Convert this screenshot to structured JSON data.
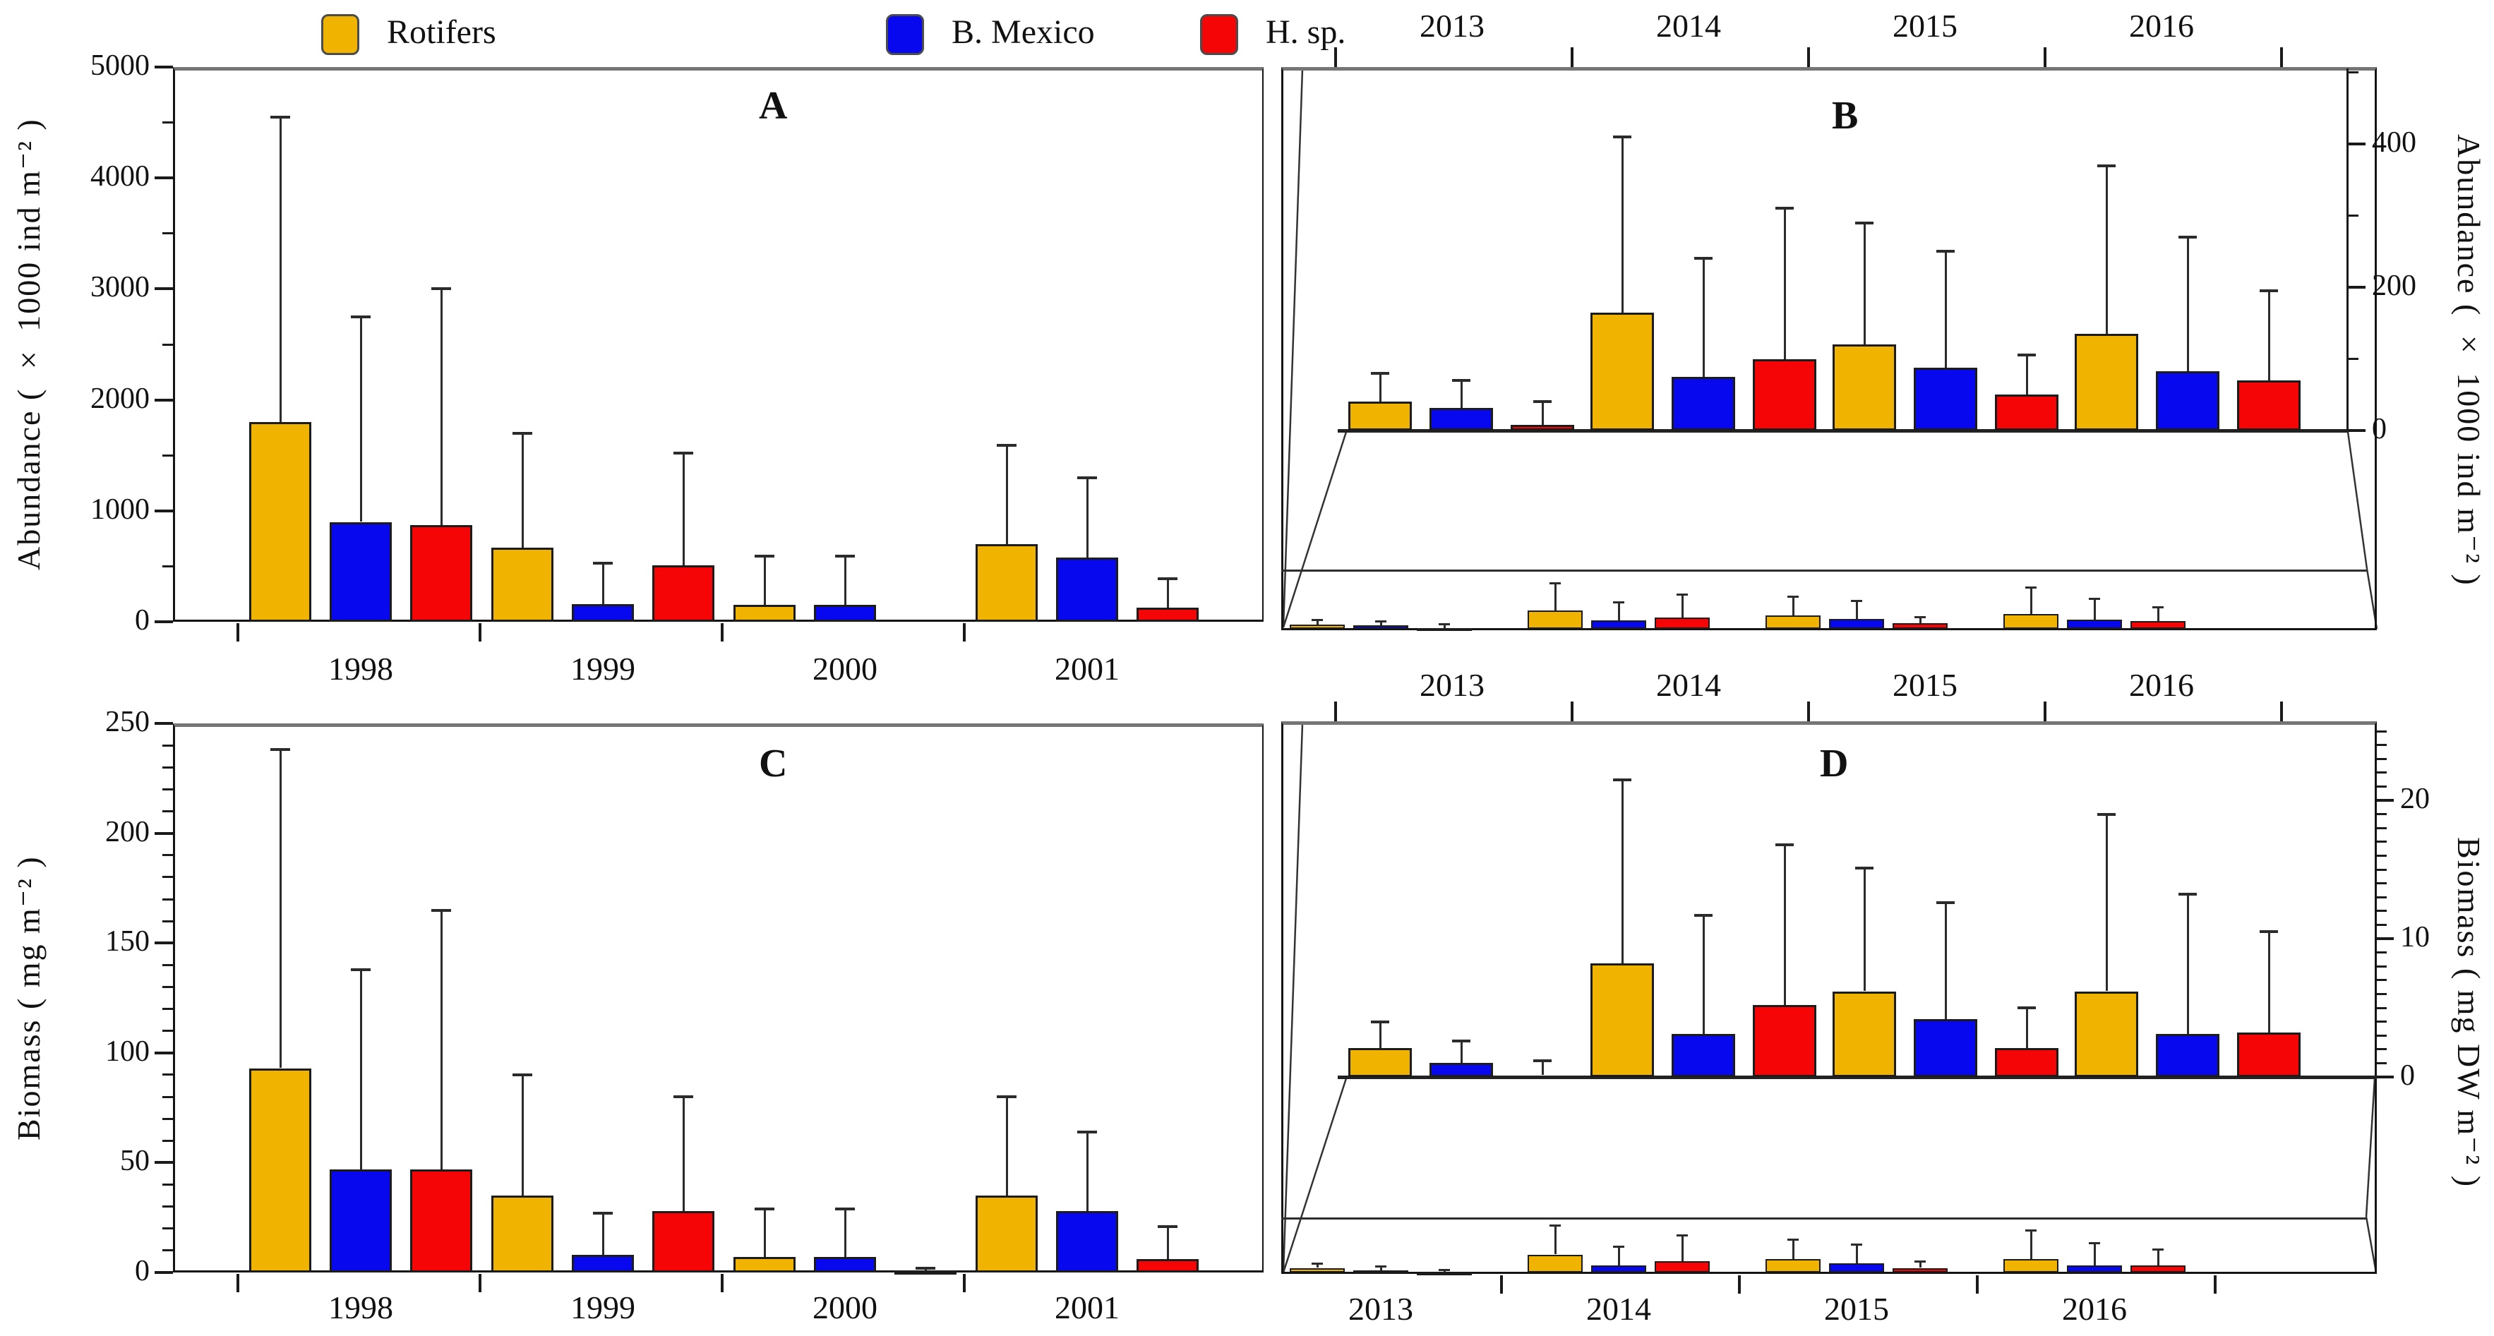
{
  "legend": {
    "items": [
      {
        "label": "Rotifers",
        "color": "#F0B400"
      },
      {
        "label": "B. Mexico",
        "color": "#0708EE"
      },
      {
        "label": "H. sp.",
        "color": "#F50505"
      }
    ]
  },
  "colors": {
    "rotifers": "#F0B400",
    "bmexico": "#0708EE",
    "hsp": "#F50505",
    "axis": "#1a1a1a"
  },
  "chart_data": [
    {
      "type": "bar",
      "letter": "A",
      "ylabel": "Abundance ( × 1000 ind m⁻² )",
      "categories": [
        "1998",
        "1999",
        "2000",
        "2001"
      ],
      "ylim": [
        0,
        5000
      ],
      "yticks": [
        0,
        1000,
        2000,
        3000,
        4000,
        5000
      ],
      "ytick_labels": [
        "0",
        "1000",
        "2000",
        "3000",
        "4000",
        "5000"
      ],
      "legend_position": "top",
      "grid": false,
      "series": [
        {
          "name": "Rotifers",
          "values": [
            1800,
            670,
            150,
            700
          ],
          "upper_errors": [
            4550,
            1700,
            590,
            1590
          ]
        },
        {
          "name": "B. Mexico",
          "values": [
            900,
            160,
            150,
            580
          ],
          "upper_errors": [
            2750,
            530,
            590,
            1300
          ]
        },
        {
          "name": "H. sp.",
          "values": [
            870,
            510,
            0,
            130
          ],
          "upper_errors": [
            3000,
            1520,
            0,
            390
          ]
        }
      ]
    },
    {
      "type": "bar",
      "letter": "B",
      "ylabel": "Abundance ( × 1000 ind m⁻² )",
      "categories": [
        "2013",
        "2014",
        "2015",
        "2016"
      ],
      "ylim_inset": [
        0,
        500
      ],
      "ylim_outer": [
        0,
        5000
      ],
      "yticks": [
        0,
        200,
        400
      ],
      "ytick_labels": [
        "0",
        "200",
        "400"
      ],
      "axis_side": "right",
      "grid": false,
      "series": [
        {
          "name": "Rotifers",
          "values": [
            40,
            165,
            120,
            135
          ],
          "upper_errors": [
            80,
            410,
            290,
            370
          ]
        },
        {
          "name": "B. Mexico",
          "values": [
            32,
            75,
            88,
            83
          ],
          "upper_errors": [
            70,
            240,
            250,
            270
          ]
        },
        {
          "name": "H. sp.",
          "values": [
            8,
            100,
            50,
            70
          ],
          "upper_errors": [
            40,
            310,
            105,
            195
          ]
        }
      ]
    },
    {
      "type": "bar",
      "letter": "C",
      "ylabel": "Biomass ( mg m⁻² )",
      "categories": [
        "1998",
        "1999",
        "2000",
        "2001"
      ],
      "ylim": [
        0,
        250
      ],
      "yticks": [
        0,
        50,
        100,
        150,
        200,
        250
      ],
      "ytick_labels": [
        "0",
        "50",
        "100",
        "150",
        "200",
        "250"
      ],
      "grid": false,
      "series": [
        {
          "name": "Rotifers",
          "values": [
            93,
            35,
            7,
            35
          ],
          "upper_errors": [
            238,
            90,
            29,
            80
          ]
        },
        {
          "name": "B. Mexico",
          "values": [
            47,
            8,
            7,
            28
          ],
          "upper_errors": [
            138,
            27,
            29,
            64
          ]
        },
        {
          "name": "H. sp.",
          "values": [
            47,
            28,
            1,
            6
          ],
          "upper_errors": [
            165,
            80,
            2,
            21
          ]
        }
      ]
    },
    {
      "type": "bar",
      "letter": "D",
      "ylabel": "Biomass ( mg DW m⁻² )",
      "categories": [
        "2013",
        "2014",
        "2015",
        "2016"
      ],
      "ylim_inset": [
        0,
        25
      ],
      "ylim_outer": [
        0,
        250
      ],
      "yticks": [
        0,
        10,
        20
      ],
      "ytick_labels": [
        "0",
        "10",
        "20"
      ],
      "axis_side": "right",
      "grid": false,
      "series": [
        {
          "name": "Rotifers",
          "values": [
            2.1,
            8.2,
            6.2,
            6.2
          ],
          "upper_errors": [
            4.0,
            21.5,
            15.1,
            19.0
          ]
        },
        {
          "name": "B. Mexico",
          "values": [
            1.0,
            3.1,
            4.2,
            3.1
          ],
          "upper_errors": [
            2.6,
            11.7,
            12.6,
            13.2
          ]
        },
        {
          "name": "H. sp.",
          "values": [
            0.15,
            5.2,
            2.1,
            3.2
          ],
          "upper_errors": [
            1.2,
            16.8,
            5.0,
            10.5
          ]
        }
      ]
    }
  ]
}
